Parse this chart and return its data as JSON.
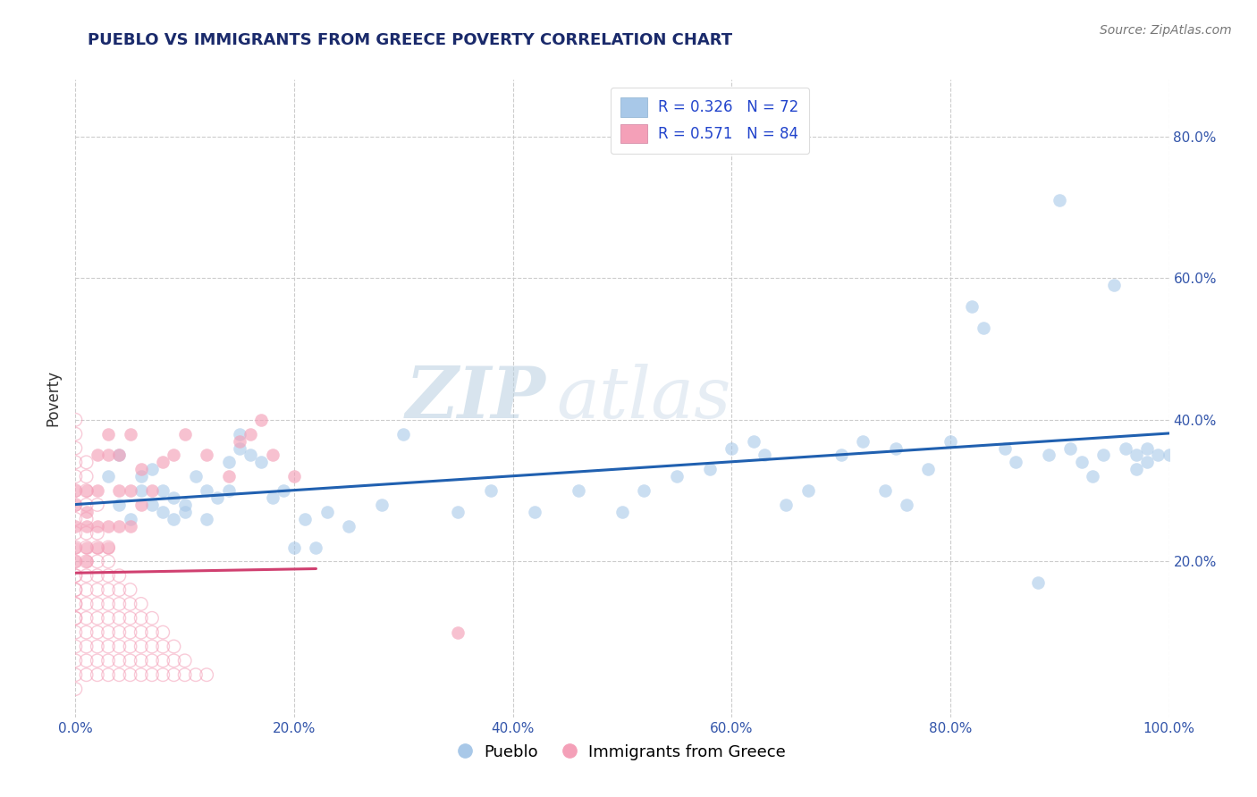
{
  "title": "PUEBLO VS IMMIGRANTS FROM GREECE POVERTY CORRELATION CHART",
  "source_text": "Source: ZipAtlas.com",
  "ylabel": "Poverty",
  "xlim": [
    0.0,
    1.0
  ],
  "ylim": [
    -0.02,
    0.88
  ],
  "xtick_labels": [
    "0.0%",
    "20.0%",
    "40.0%",
    "60.0%",
    "80.0%",
    "100.0%"
  ],
  "xtick_vals": [
    0.0,
    0.2,
    0.4,
    0.6,
    0.8,
    1.0
  ],
  "ytick_labels": [
    "20.0%",
    "40.0%",
    "60.0%",
    "80.0%"
  ],
  "ytick_vals": [
    0.2,
    0.4,
    0.6,
    0.8
  ],
  "legend_r1": "R = 0.326   N = 72",
  "legend_r2": "R = 0.571   N = 84",
  "pueblo_color": "#a8c8e8",
  "immigrants_color": "#f4a0b8",
  "pueblo_line_color": "#2060b0",
  "immigrants_line_color": "#d04070",
  "background_color": "#ffffff",
  "grid_color": "#cccccc",
  "watermark_line1": "ZIP",
  "watermark_line2": "atlas",
  "pueblo_scatter": [
    [
      0.03,
      0.32
    ],
    [
      0.04,
      0.28
    ],
    [
      0.05,
      0.26
    ],
    [
      0.06,
      0.3
    ],
    [
      0.07,
      0.28
    ],
    [
      0.08,
      0.3
    ],
    [
      0.09,
      0.29
    ],
    [
      0.1,
      0.28
    ],
    [
      0.11,
      0.32
    ],
    [
      0.12,
      0.3
    ],
    [
      0.13,
      0.29
    ],
    [
      0.14,
      0.34
    ],
    [
      0.15,
      0.36
    ],
    [
      0.15,
      0.38
    ],
    [
      0.16,
      0.35
    ],
    [
      0.17,
      0.34
    ],
    [
      0.18,
      0.29
    ],
    [
      0.19,
      0.3
    ],
    [
      0.2,
      0.22
    ],
    [
      0.21,
      0.26
    ],
    [
      0.22,
      0.22
    ],
    [
      0.23,
      0.27
    ],
    [
      0.25,
      0.25
    ],
    [
      0.28,
      0.28
    ],
    [
      0.3,
      0.38
    ],
    [
      0.35,
      0.27
    ],
    [
      0.38,
      0.3
    ],
    [
      0.42,
      0.27
    ],
    [
      0.46,
      0.3
    ],
    [
      0.5,
      0.27
    ],
    [
      0.52,
      0.3
    ],
    [
      0.55,
      0.32
    ],
    [
      0.58,
      0.33
    ],
    [
      0.6,
      0.36
    ],
    [
      0.62,
      0.37
    ],
    [
      0.63,
      0.35
    ],
    [
      0.65,
      0.28
    ],
    [
      0.67,
      0.3
    ],
    [
      0.7,
      0.35
    ],
    [
      0.72,
      0.37
    ],
    [
      0.74,
      0.3
    ],
    [
      0.75,
      0.36
    ],
    [
      0.76,
      0.28
    ],
    [
      0.78,
      0.33
    ],
    [
      0.8,
      0.37
    ],
    [
      0.82,
      0.56
    ],
    [
      0.83,
      0.53
    ],
    [
      0.85,
      0.36
    ],
    [
      0.86,
      0.34
    ],
    [
      0.88,
      0.17
    ],
    [
      0.89,
      0.35
    ],
    [
      0.9,
      0.71
    ],
    [
      0.91,
      0.36
    ],
    [
      0.92,
      0.34
    ],
    [
      0.93,
      0.32
    ],
    [
      0.94,
      0.35
    ],
    [
      0.95,
      0.59
    ],
    [
      0.96,
      0.36
    ],
    [
      0.97,
      0.35
    ],
    [
      0.97,
      0.33
    ],
    [
      0.98,
      0.36
    ],
    [
      0.98,
      0.34
    ],
    [
      0.99,
      0.35
    ],
    [
      1.0,
      0.35
    ],
    [
      0.04,
      0.35
    ],
    [
      0.06,
      0.32
    ],
    [
      0.07,
      0.33
    ],
    [
      0.08,
      0.27
    ],
    [
      0.09,
      0.26
    ],
    [
      0.1,
      0.27
    ],
    [
      0.12,
      0.26
    ],
    [
      0.14,
      0.3
    ]
  ],
  "immigrants_scatter_solid": [
    [
      0.0,
      0.2
    ],
    [
      0.0,
      0.22
    ],
    [
      0.0,
      0.25
    ],
    [
      0.0,
      0.28
    ],
    [
      0.0,
      0.3
    ],
    [
      0.01,
      0.2
    ],
    [
      0.01,
      0.22
    ],
    [
      0.01,
      0.25
    ],
    [
      0.01,
      0.27
    ],
    [
      0.01,
      0.3
    ],
    [
      0.02,
      0.22
    ],
    [
      0.02,
      0.25
    ],
    [
      0.02,
      0.3
    ],
    [
      0.02,
      0.35
    ],
    [
      0.03,
      0.22
    ],
    [
      0.03,
      0.25
    ],
    [
      0.03,
      0.35
    ],
    [
      0.03,
      0.38
    ],
    [
      0.04,
      0.25
    ],
    [
      0.04,
      0.3
    ],
    [
      0.04,
      0.35
    ],
    [
      0.05,
      0.25
    ],
    [
      0.05,
      0.3
    ],
    [
      0.05,
      0.38
    ],
    [
      0.06,
      0.28
    ],
    [
      0.06,
      0.33
    ],
    [
      0.07,
      0.3
    ],
    [
      0.08,
      0.34
    ],
    [
      0.09,
      0.35
    ],
    [
      0.1,
      0.38
    ],
    [
      0.12,
      0.35
    ],
    [
      0.14,
      0.32
    ],
    [
      0.15,
      0.37
    ],
    [
      0.16,
      0.38
    ],
    [
      0.17,
      0.4
    ],
    [
      0.18,
      0.35
    ],
    [
      0.2,
      0.32
    ],
    [
      0.35,
      0.1
    ]
  ],
  "immigrants_scatter_hollow": [
    [
      0.0,
      0.02
    ],
    [
      0.0,
      0.04
    ],
    [
      0.0,
      0.06
    ],
    [
      0.0,
      0.08
    ],
    [
      0.0,
      0.1
    ],
    [
      0.0,
      0.12
    ],
    [
      0.0,
      0.14
    ],
    [
      0.0,
      0.16
    ],
    [
      0.0,
      0.18
    ],
    [
      0.0,
      0.2
    ],
    [
      0.0,
      0.22
    ],
    [
      0.0,
      0.24
    ],
    [
      0.0,
      0.26
    ],
    [
      0.0,
      0.28
    ],
    [
      0.0,
      0.3
    ],
    [
      0.0,
      0.32
    ],
    [
      0.0,
      0.34
    ],
    [
      0.0,
      0.36
    ],
    [
      0.0,
      0.38
    ],
    [
      0.0,
      0.4
    ],
    [
      0.0,
      0.18
    ],
    [
      0.0,
      0.16
    ],
    [
      0.0,
      0.14
    ],
    [
      0.0,
      0.12
    ],
    [
      0.01,
      0.04
    ],
    [
      0.01,
      0.06
    ],
    [
      0.01,
      0.08
    ],
    [
      0.01,
      0.1
    ],
    [
      0.01,
      0.12
    ],
    [
      0.01,
      0.14
    ],
    [
      0.01,
      0.16
    ],
    [
      0.01,
      0.18
    ],
    [
      0.01,
      0.2
    ],
    [
      0.01,
      0.22
    ],
    [
      0.01,
      0.24
    ],
    [
      0.01,
      0.26
    ],
    [
      0.01,
      0.28
    ],
    [
      0.01,
      0.3
    ],
    [
      0.01,
      0.32
    ],
    [
      0.01,
      0.34
    ],
    [
      0.02,
      0.04
    ],
    [
      0.02,
      0.06
    ],
    [
      0.02,
      0.08
    ],
    [
      0.02,
      0.1
    ],
    [
      0.02,
      0.12
    ],
    [
      0.02,
      0.14
    ],
    [
      0.02,
      0.16
    ],
    [
      0.02,
      0.18
    ],
    [
      0.02,
      0.2
    ],
    [
      0.02,
      0.22
    ],
    [
      0.02,
      0.24
    ],
    [
      0.02,
      0.28
    ],
    [
      0.03,
      0.04
    ],
    [
      0.03,
      0.06
    ],
    [
      0.03,
      0.08
    ],
    [
      0.03,
      0.1
    ],
    [
      0.03,
      0.12
    ],
    [
      0.03,
      0.14
    ],
    [
      0.03,
      0.16
    ],
    [
      0.03,
      0.18
    ],
    [
      0.03,
      0.2
    ],
    [
      0.03,
      0.22
    ],
    [
      0.04,
      0.04
    ],
    [
      0.04,
      0.06
    ],
    [
      0.04,
      0.08
    ],
    [
      0.04,
      0.1
    ],
    [
      0.04,
      0.12
    ],
    [
      0.04,
      0.14
    ],
    [
      0.04,
      0.16
    ],
    [
      0.04,
      0.18
    ],
    [
      0.05,
      0.04
    ],
    [
      0.05,
      0.06
    ],
    [
      0.05,
      0.08
    ],
    [
      0.05,
      0.1
    ],
    [
      0.05,
      0.12
    ],
    [
      0.05,
      0.14
    ],
    [
      0.05,
      0.16
    ],
    [
      0.06,
      0.04
    ],
    [
      0.06,
      0.06
    ],
    [
      0.06,
      0.08
    ],
    [
      0.06,
      0.1
    ],
    [
      0.06,
      0.12
    ],
    [
      0.06,
      0.14
    ],
    [
      0.07,
      0.04
    ],
    [
      0.07,
      0.06
    ],
    [
      0.07,
      0.08
    ],
    [
      0.07,
      0.1
    ],
    [
      0.07,
      0.12
    ],
    [
      0.08,
      0.04
    ],
    [
      0.08,
      0.06
    ],
    [
      0.08,
      0.08
    ],
    [
      0.08,
      0.1
    ],
    [
      0.09,
      0.04
    ],
    [
      0.09,
      0.06
    ],
    [
      0.09,
      0.08
    ],
    [
      0.1,
      0.04
    ],
    [
      0.1,
      0.06
    ],
    [
      0.11,
      0.04
    ],
    [
      0.12,
      0.04
    ]
  ]
}
